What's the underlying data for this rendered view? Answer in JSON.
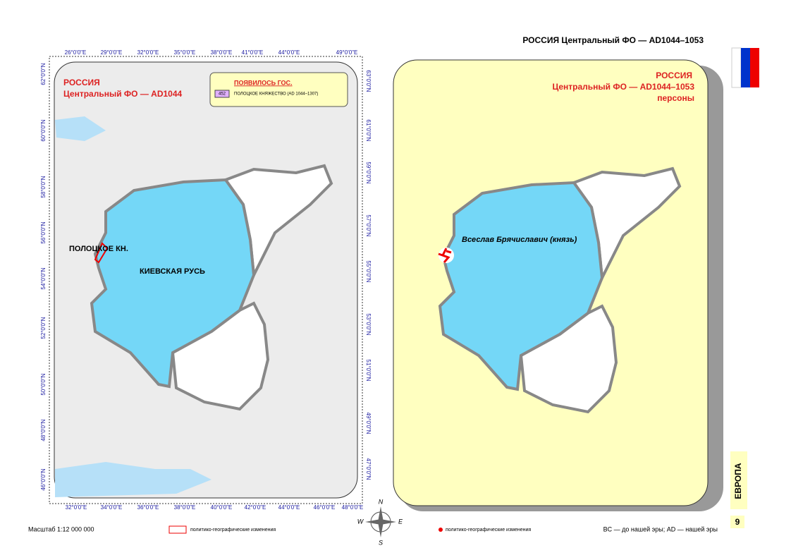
{
  "header": {
    "title": "РОССИЯ Центральный ФО — AD1044–1053"
  },
  "left_map": {
    "title_lines": [
      "РОССИЯ",
      "Центральный ФО — AD1044"
    ],
    "legend": {
      "heading": "ПОЯВИЛОСЬ ГОС.",
      "items": [
        {
          "code": "452",
          "label": "ПОЛОЦКОЕ КНЯЖЕСТВО (AD 1044–1307)"
        }
      ]
    },
    "labels": [
      "ПОЛОЦКОЕ КН.",
      "КИЕВСКАЯ РУСЬ"
    ],
    "top_ticks": [
      "26°0'0\"E",
      "29°0'0\"E",
      "32°0'0\"E",
      "35°0'0\"E",
      "38°0'0\"E",
      "41°0'0\"E",
      "44°0'0\"E",
      "49°0'0\"E"
    ],
    "bottom_ticks": [
      "32°0'0\"E",
      "34°0'0\"E",
      "36°0'0\"E",
      "38°0'0\"E",
      "40°0'0\"E",
      "42°0'0\"E",
      "44°0'0\"E",
      "46°0'0\"E",
      "48°0'0\"E"
    ],
    "left_ticks": [
      "62°0'0\"N",
      "60°0'0\"N",
      "58°0'0\"N",
      "56°0'0\"N",
      "54°0'0\"N",
      "52°0'0\"N",
      "50°0'0\"N",
      "48°0'0\"N",
      "46°0'0\"N"
    ],
    "right_ticks": [
      "63°0'0\"N",
      "61°0'0\"N",
      "59°0'0\"N",
      "57°0'0\"N",
      "55°0'0\"N",
      "53°0'0\"N",
      "51°0'0\"N",
      "49°0'0\"N",
      "47°0'0\"N"
    ]
  },
  "right_map": {
    "title_lines": [
      "РОССИЯ",
      "Центральный ФО — AD1044–1053",
      "персоны"
    ],
    "person": "Всеслав Брячиславич (князь)"
  },
  "compass": [
    "N",
    "E",
    "S",
    "W"
  ],
  "footer": {
    "scale": "Масштаб 1:12 000 000",
    "legend_left": "политико-географические изменения",
    "legend_right": "политико-географические изменения",
    "note": "BC — до нашей эры; AD — нашей эры"
  },
  "side": {
    "region": "ЕВРОПА",
    "page": "9"
  }
}
